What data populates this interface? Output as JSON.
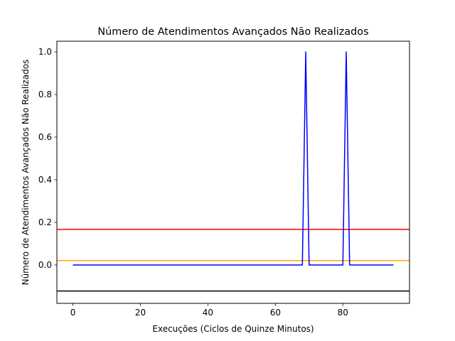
{
  "chart_data": {
    "type": "line",
    "title": "Número de Atendimentos Avançados Não Realizados",
    "xlabel": "Execuções (Ciclos de Quinze Minutos)",
    "ylabel": "Número de Atendimentos Avançados Não Realizados",
    "xlim": [
      -4.75,
      99.75
    ],
    "ylim": [
      -0.18,
      1.05
    ],
    "x_ticks": [
      0,
      20,
      40,
      60,
      80
    ],
    "x_tick_labels": [
      "0",
      "20",
      "40",
      "60",
      "80"
    ],
    "y_ticks": [
      0.0,
      0.2,
      0.4,
      0.6,
      0.8,
      1.0
    ],
    "y_tick_labels": [
      "0.0",
      "0.2",
      "0.4",
      "0.6",
      "0.8",
      "1.0"
    ],
    "grid": false,
    "series": [
      {
        "color": "#0000ff",
        "x": [
          0,
          68,
          69,
          70,
          80,
          81,
          82,
          95
        ],
        "y": [
          0,
          0,
          1,
          0,
          0,
          1,
          0,
          0
        ]
      }
    ],
    "hlines": [
      {
        "y": 0.167,
        "color": "#ff0000"
      },
      {
        "y": 0.021,
        "color": "#ffa500"
      },
      {
        "y": -0.122,
        "color": "#000000"
      }
    ]
  }
}
